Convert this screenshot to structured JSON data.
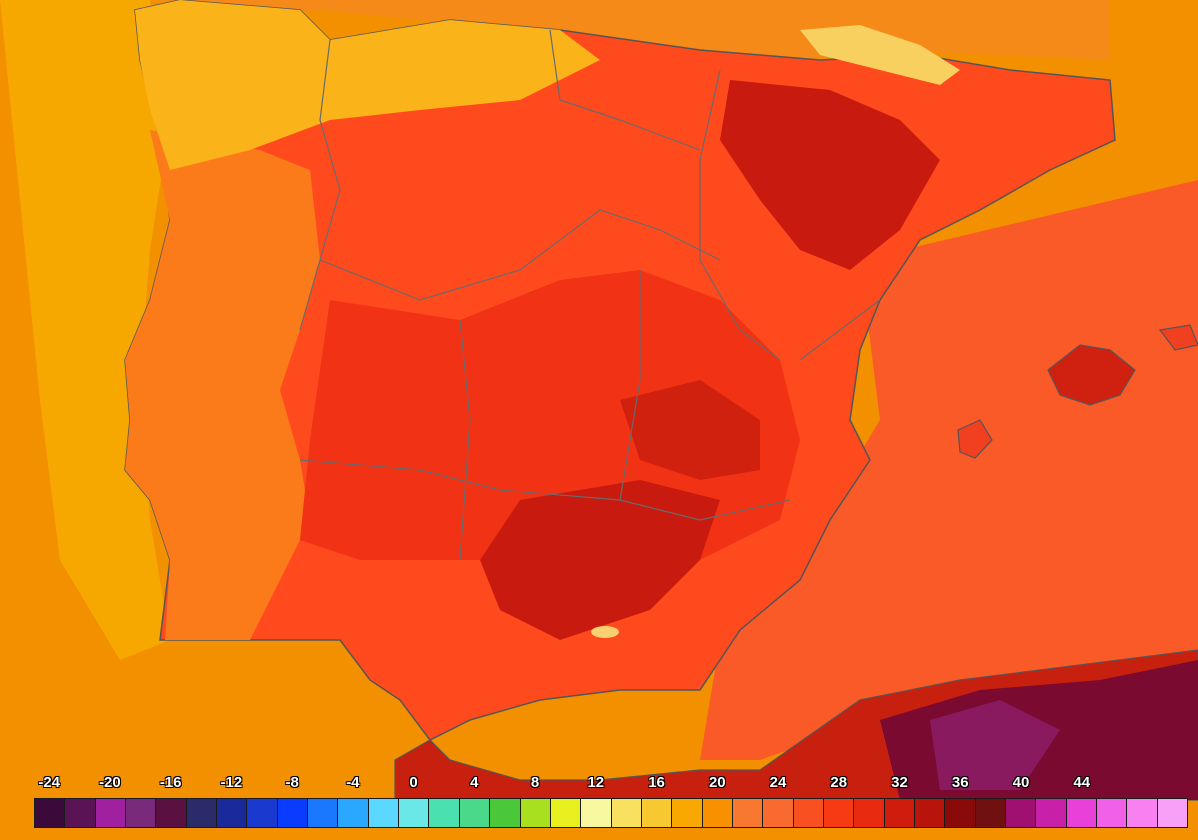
{
  "map": {
    "region": "Iberian Peninsula",
    "variable": "temperature",
    "sea_color": "#f29000",
    "land_colors": {
      "coast_west": "#f7a300",
      "hot": "#ff3b1f",
      "very_hot": "#e82e14",
      "extreme": "#b5140c",
      "north_africa": "#7a0a2a"
    }
  },
  "legend": {
    "ticks": [
      "-24",
      "-20",
      "-16",
      "-12",
      "-8",
      "-4",
      "0",
      "4",
      "8",
      "12",
      "16",
      "20",
      "24",
      "28",
      "32",
      "36",
      "40",
      "44"
    ],
    "swatches": [
      "#3b0a3b",
      "#5a1455",
      "#a020a0",
      "#7a2a7a",
      "#5a1040",
      "#2b2b6a",
      "#1a2a9a",
      "#1a3acf",
      "#0a3cff",
      "#1a78ff",
      "#2aa8ff",
      "#5ad8ff",
      "#6ae8e8",
      "#4ae0b0",
      "#4ad88a",
      "#4ac83a",
      "#a8e020",
      "#e8f020",
      "#f8f8a0",
      "#f8e060",
      "#f8c830",
      "#f8a800",
      "#f89000",
      "#f87830",
      "#f86a30",
      "#f85020",
      "#f83a14",
      "#e82a10",
      "#d01c0c",
      "#b8140c",
      "#8a0a0a",
      "#701010",
      "#a01070",
      "#c820a8",
      "#e840d8",
      "#f060e8",
      "#f880f0",
      "#f8a0f8"
    ]
  }
}
